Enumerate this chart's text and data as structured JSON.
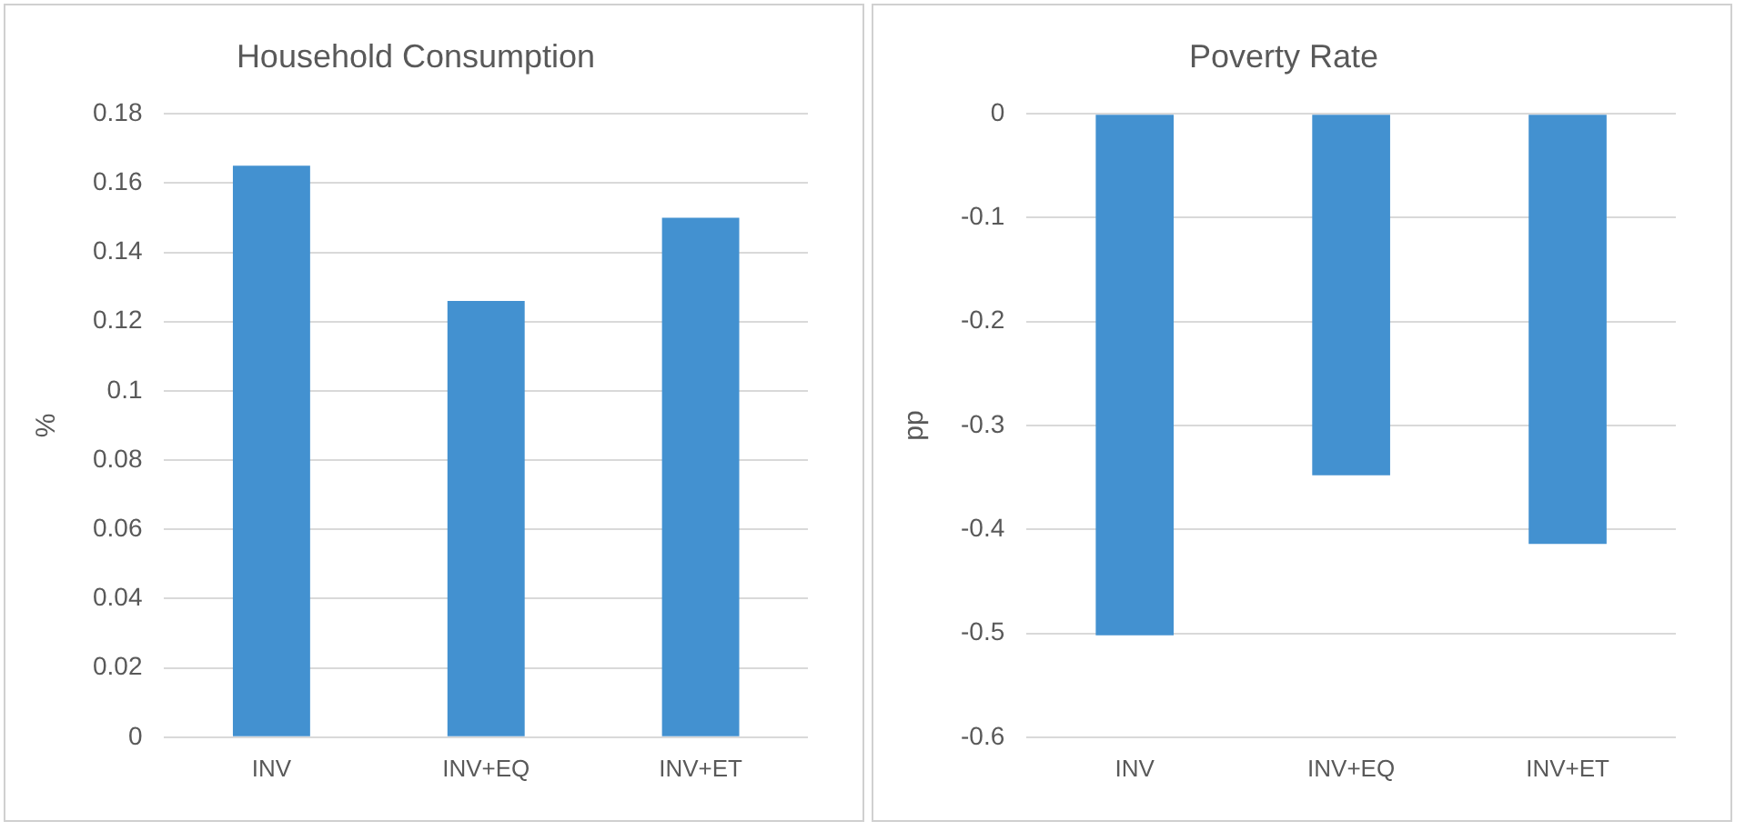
{
  "chart_data": [
    {
      "type": "bar",
      "title": "Household Consumption",
      "ylabel": "%",
      "categories": [
        "INV",
        "INV+EQ",
        "INV+ET"
      ],
      "series": [
        {
          "color": "#4391d0",
          "values": [
            0.165,
            0.126,
            0.15
          ]
        }
      ],
      "ylim": [
        0,
        0.18
      ],
      "yticks": [
        0,
        0.02,
        0.04,
        0.06,
        0.08,
        0.1,
        0.12,
        0.14,
        0.16,
        0.18
      ],
      "grid": "y",
      "legend": false
    },
    {
      "type": "bar",
      "title": "Poverty Rate",
      "ylabel": "pp",
      "categories": [
        "INV",
        "INV+EQ",
        "INV+ET"
      ],
      "series": [
        {
          "color": "#4391d0",
          "values": [
            -0.502,
            -0.348,
            -0.414
          ]
        }
      ],
      "ylim": [
        -0.6,
        0
      ],
      "yticks": [
        -0.6,
        -0.5,
        -0.4,
        -0.3,
        -0.2,
        -0.1,
        0
      ],
      "grid": "y",
      "legend": false
    }
  ]
}
